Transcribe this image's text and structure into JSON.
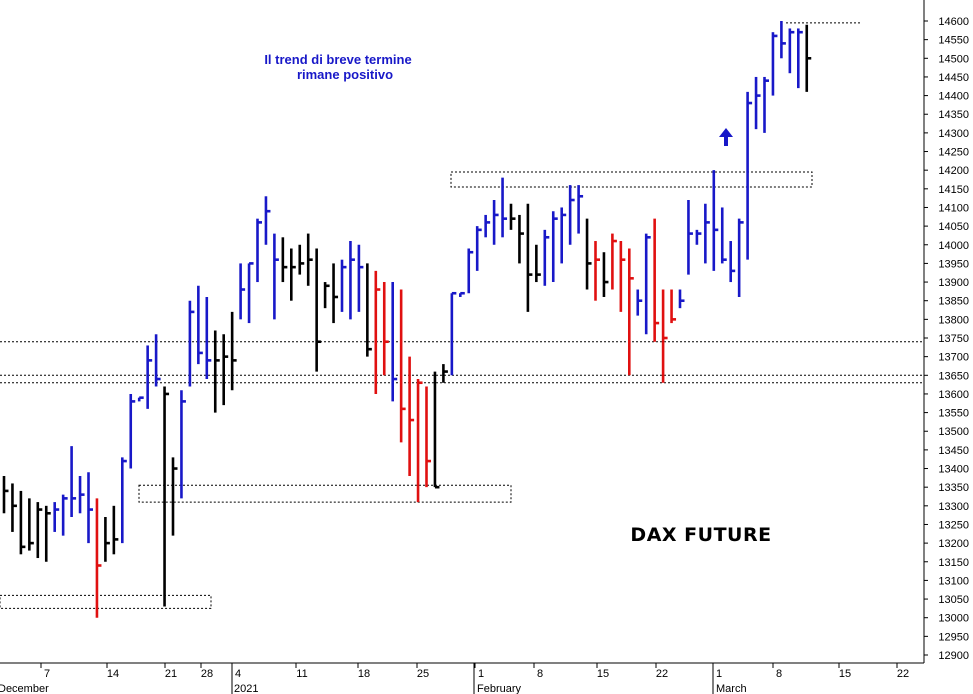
{
  "chart_data": {
    "type": "ohlc",
    "title": "DAX FUTURE",
    "annotation": [
      "Il trend di breve termine",
      "rimane positivo"
    ],
    "ylim": [
      12875,
      14620
    ],
    "y_ticks": [
      12900,
      12950,
      13000,
      13050,
      13100,
      13150,
      13200,
      13250,
      13300,
      13350,
      13400,
      13450,
      13500,
      13550,
      13600,
      13650,
      13700,
      13750,
      13800,
      13850,
      13900,
      13950,
      14000,
      14050,
      14100,
      14150,
      14200,
      14250,
      14300,
      14350,
      14400,
      14450,
      14500,
      14550,
      14600
    ],
    "x_tick_labels": [
      "7",
      "14",
      "21",
      "28",
      "4",
      "11",
      "18",
      "25",
      "1",
      "8",
      "15",
      "22",
      "1",
      "8",
      "15",
      "22"
    ],
    "month_labels": [
      "December",
      "2021",
      "February",
      "March"
    ],
    "colors": {
      "up": "#1818c8",
      "down": "#e01010",
      "neutral": "#000000",
      "box": "#000000"
    },
    "bars": [
      {
        "h": 13380,
        "l": 13280,
        "c": 13340,
        "color": "black"
      },
      {
        "h": 13360,
        "l": 13230,
        "c": 13300,
        "color": "black"
      },
      {
        "h": 13340,
        "l": 13170,
        "c": 13190,
        "color": "black"
      },
      {
        "h": 13320,
        "l": 13180,
        "c": 13200,
        "color": "black"
      },
      {
        "h": 13310,
        "l": 13160,
        "c": 13290,
        "color": "black"
      },
      {
        "h": 13300,
        "l": 13150,
        "c": 13280,
        "color": "black"
      },
      {
        "h": 13310,
        "l": 13230,
        "c": 13290,
        "color": "blue"
      },
      {
        "h": 13330,
        "l": 13220,
        "c": 13320,
        "color": "blue"
      },
      {
        "h": 13460,
        "l": 13270,
        "c": 13320,
        "color": "blue"
      },
      {
        "h": 13380,
        "l": 13280,
        "c": 13330,
        "color": "blue"
      },
      {
        "h": 13390,
        "l": 13200,
        "c": 13290,
        "color": "blue"
      },
      {
        "h": 13320,
        "l": 13000,
        "c": 13140,
        "color": "red"
      },
      {
        "h": 13270,
        "l": 13150,
        "c": 13200,
        "color": "black"
      },
      {
        "h": 13300,
        "l": 13170,
        "c": 13210,
        "color": "black"
      },
      {
        "h": 13430,
        "l": 13200,
        "c": 13420,
        "color": "blue"
      },
      {
        "h": 13600,
        "l": 13400,
        "c": 13580,
        "color": "blue"
      },
      {
        "h": 13590,
        "l": 13580,
        "c": 13590,
        "color": "blue"
      },
      {
        "h": 13730,
        "l": 13560,
        "c": 13690,
        "color": "blue"
      },
      {
        "h": 13760,
        "l": 13620,
        "c": 13640,
        "color": "blue"
      },
      {
        "h": 13620,
        "l": 13030,
        "c": 13600,
        "color": "black"
      },
      {
        "h": 13430,
        "l": 13220,
        "c": 13400,
        "color": "black"
      },
      {
        "h": 13610,
        "l": 13320,
        "c": 13580,
        "color": "blue"
      },
      {
        "h": 13850,
        "l": 13620,
        "c": 13820,
        "color": "blue"
      },
      {
        "h": 13890,
        "l": 13680,
        "c": 13710,
        "color": "blue"
      },
      {
        "h": 13860,
        "l": 13640,
        "c": 13690,
        "color": "blue"
      },
      {
        "h": 13770,
        "l": 13550,
        "c": 13690,
        "color": "black"
      },
      {
        "h": 13760,
        "l": 13570,
        "c": 13700,
        "color": "black"
      },
      {
        "h": 13820,
        "l": 13610,
        "c": 13690,
        "color": "black"
      },
      {
        "h": 13950,
        "l": 13800,
        "c": 13880,
        "color": "blue"
      },
      {
        "h": 13950,
        "l": 13790,
        "c": 13950,
        "color": "blue"
      },
      {
        "h": 14070,
        "l": 13900,
        "c": 14060,
        "color": "blue"
      },
      {
        "h": 14130,
        "l": 14000,
        "c": 14090,
        "color": "blue"
      },
      {
        "h": 14030,
        "l": 13800,
        "c": 13960,
        "color": "blue"
      },
      {
        "h": 14020,
        "l": 13900,
        "c": 13940,
        "color": "black"
      },
      {
        "h": 13990,
        "l": 13850,
        "c": 13940,
        "color": "black"
      },
      {
        "h": 14000,
        "l": 13920,
        "c": 13950,
        "color": "black"
      },
      {
        "h": 14030,
        "l": 13890,
        "c": 13960,
        "color": "black"
      },
      {
        "h": 13990,
        "l": 13660,
        "c": 13740,
        "color": "black"
      },
      {
        "h": 13900,
        "l": 13830,
        "c": 13890,
        "color": "black"
      },
      {
        "h": 13950,
        "l": 13790,
        "c": 13860,
        "color": "black"
      },
      {
        "h": 13960,
        "l": 13820,
        "c": 13940,
        "color": "blue"
      },
      {
        "h": 14010,
        "l": 13800,
        "c": 13960,
        "color": "blue"
      },
      {
        "h": 14000,
        "l": 13820,
        "c": 13940,
        "color": "blue"
      },
      {
        "h": 13950,
        "l": 13700,
        "c": 13720,
        "color": "black"
      },
      {
        "h": 13930,
        "l": 13600,
        "c": 13880,
        "color": "red"
      },
      {
        "h": 13900,
        "l": 13650,
        "c": 13740,
        "color": "red"
      },
      {
        "h": 13900,
        "l": 13580,
        "c": 13640,
        "color": "blue"
      },
      {
        "h": 13880,
        "l": 13470,
        "c": 13560,
        "color": "red"
      },
      {
        "h": 13700,
        "l": 13380,
        "c": 13530,
        "color": "red"
      },
      {
        "h": 13640,
        "l": 13310,
        "c": 13630,
        "color": "red"
      },
      {
        "h": 13620,
        "l": 13350,
        "c": 13420,
        "color": "red"
      },
      {
        "h": 13660,
        "l": 13350,
        "c": 13350,
        "color": "black"
      },
      {
        "h": 13680,
        "l": 13630,
        "c": 13660,
        "color": "black"
      },
      {
        "h": 13870,
        "l": 13650,
        "c": 13870,
        "color": "blue"
      },
      {
        "h": 13870,
        "l": 13860,
        "c": 13870,
        "color": "blue"
      },
      {
        "h": 13990,
        "l": 13870,
        "c": 13980,
        "color": "blue"
      },
      {
        "h": 14050,
        "l": 13930,
        "c": 14040,
        "color": "blue"
      },
      {
        "h": 14080,
        "l": 14020,
        "c": 14060,
        "color": "blue"
      },
      {
        "h": 14120,
        "l": 14000,
        "c": 14080,
        "color": "blue"
      },
      {
        "h": 14180,
        "l": 14020,
        "c": 14070,
        "color": "blue"
      },
      {
        "h": 14110,
        "l": 14040,
        "c": 14070,
        "color": "black"
      },
      {
        "h": 14080,
        "l": 13950,
        "c": 14030,
        "color": "black"
      },
      {
        "h": 14110,
        "l": 13820,
        "c": 13920,
        "color": "black"
      },
      {
        "h": 14000,
        "l": 13900,
        "c": 13920,
        "color": "black"
      },
      {
        "h": 14040,
        "l": 13890,
        "c": 14020,
        "color": "blue"
      },
      {
        "h": 14090,
        "l": 13900,
        "c": 14070,
        "color": "blue"
      },
      {
        "h": 14100,
        "l": 13950,
        "c": 14080,
        "color": "blue"
      },
      {
        "h": 14160,
        "l": 14000,
        "c": 14120,
        "color": "blue"
      },
      {
        "h": 14160,
        "l": 14030,
        "c": 14130,
        "color": "blue"
      },
      {
        "h": 14070,
        "l": 13880,
        "c": 13950,
        "color": "black"
      },
      {
        "h": 14010,
        "l": 13850,
        "c": 13960,
        "color": "red"
      },
      {
        "h": 13980,
        "l": 13860,
        "c": 13900,
        "color": "black"
      },
      {
        "h": 14030,
        "l": 13880,
        "c": 14010,
        "color": "red"
      },
      {
        "h": 14010,
        "l": 13820,
        "c": 13960,
        "color": "red"
      },
      {
        "h": 13990,
        "l": 13650,
        "c": 13910,
        "color": "red"
      },
      {
        "h": 13880,
        "l": 13810,
        "c": 13850,
        "color": "blue"
      },
      {
        "h": 14030,
        "l": 13760,
        "c": 14020,
        "color": "blue"
      },
      {
        "h": 14070,
        "l": 13740,
        "c": 13790,
        "color": "red"
      },
      {
        "h": 13880,
        "l": 13630,
        "c": 13750,
        "color": "red"
      },
      {
        "h": 13880,
        "l": 13790,
        "c": 13800,
        "color": "red"
      },
      {
        "h": 13880,
        "l": 13830,
        "c": 13850,
        "color": "blue"
      },
      {
        "h": 14120,
        "l": 13920,
        "c": 14030,
        "color": "blue"
      },
      {
        "h": 14040,
        "l": 14000,
        "c": 14030,
        "color": "blue"
      },
      {
        "h": 14110,
        "l": 13950,
        "c": 14060,
        "color": "blue"
      },
      {
        "h": 14200,
        "l": 13930,
        "c": 14040,
        "color": "blue"
      },
      {
        "h": 14100,
        "l": 13950,
        "c": 13960,
        "color": "blue"
      },
      {
        "h": 14010,
        "l": 13900,
        "c": 13930,
        "color": "blue"
      },
      {
        "h": 14070,
        "l": 13860,
        "c": 14060,
        "color": "blue"
      },
      {
        "h": 14410,
        "l": 13960,
        "c": 14380,
        "color": "blue"
      },
      {
        "h": 14450,
        "l": 14310,
        "c": 14400,
        "color": "blue"
      },
      {
        "h": 14450,
        "l": 14300,
        "c": 14440,
        "color": "blue"
      },
      {
        "h": 14570,
        "l": 14400,
        "c": 14560,
        "color": "blue"
      },
      {
        "h": 14600,
        "l": 14500,
        "c": 14540,
        "color": "blue"
      },
      {
        "h": 14580,
        "l": 14460,
        "c": 14570,
        "color": "blue"
      },
      {
        "h": 14580,
        "l": 14420,
        "c": 14570,
        "color": "blue"
      },
      {
        "h": 14590,
        "l": 14410,
        "c": 14500,
        "color": "black"
      }
    ],
    "h_lines": [
      13740,
      13650,
      13630
    ],
    "top_line": 14595,
    "boxes": [
      {
        "y1": 13060,
        "y2": 13025
      },
      {
        "y1": 13355,
        "y2": 13310
      },
      {
        "y1": 14195,
        "y2": 14155
      }
    ],
    "arrow_up": true
  }
}
